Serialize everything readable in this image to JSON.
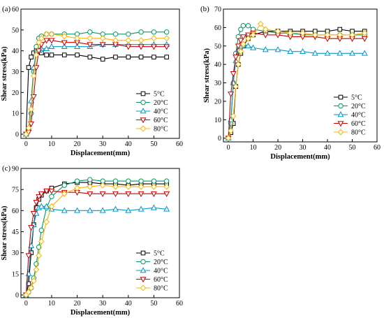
{
  "chart_data": [
    {
      "type": "line",
      "panel_label": "(a)",
      "xlabel": "Displacement(mm)",
      "ylabel": "Shear stress(kPa)",
      "xlim": [
        -2,
        60
      ],
      "ylim": [
        -2,
        60
      ],
      "xticks": [
        0,
        10,
        20,
        30,
        40,
        50,
        60
      ],
      "yticks": [
        0,
        10,
        20,
        30,
        40,
        50,
        60
      ],
      "legend_position": "lower-right",
      "series": [
        {
          "name": "5°C",
          "color": "#000000",
          "marker": "square",
          "x": [
            0,
            1,
            2,
            3,
            4,
            5,
            6,
            8,
            10,
            15,
            20,
            25,
            30,
            35,
            40,
            45,
            50,
            55
          ],
          "y": [
            0,
            32,
            37,
            39,
            40,
            40,
            39,
            38,
            38,
            38,
            38,
            37,
            36,
            37,
            37,
            37,
            37,
            37
          ]
        },
        {
          "name": "20°C",
          "color": "#009966",
          "marker": "circle",
          "x": [
            0,
            1,
            2,
            3,
            4,
            5,
            6,
            8,
            10,
            15,
            20,
            25,
            30,
            35,
            40,
            45,
            50,
            55
          ],
          "y": [
            0,
            2,
            10,
            30,
            42,
            46,
            47,
            48,
            48,
            48,
            48,
            49,
            48,
            48,
            48,
            49,
            49,
            49
          ]
        },
        {
          "name": "40°C",
          "color": "#0099cc",
          "marker": "triangle-up",
          "x": [
            0,
            1,
            2,
            3,
            4,
            5,
            6,
            8,
            10,
            15,
            20,
            25,
            30,
            35,
            40,
            45,
            50,
            55
          ],
          "y": [
            0,
            3,
            16,
            32,
            39,
            40,
            41,
            41,
            42,
            42,
            42,
            42,
            43,
            43,
            43,
            43,
            43,
            43
          ]
        },
        {
          "name": "60°C",
          "color": "#cc0000",
          "marker": "triangle-down",
          "x": [
            0,
            1,
            2,
            3,
            4,
            5,
            6,
            8,
            10,
            15,
            20,
            25,
            30,
            35,
            40,
            45,
            50,
            55
          ],
          "y": [
            0,
            1,
            5,
            18,
            32,
            40,
            43,
            45,
            45,
            44,
            44,
            43,
            43,
            43,
            42,
            42,
            42,
            42
          ]
        },
        {
          "name": "80°C",
          "color": "#ffb300",
          "marker": "diamond",
          "x": [
            0,
            1,
            2,
            3,
            4,
            5,
            6,
            8,
            10,
            15,
            20,
            25,
            30,
            35,
            40,
            45,
            50,
            55
          ],
          "y": [
            0,
            3,
            12,
            28,
            38,
            44,
            46,
            48,
            48,
            47,
            46,
            46,
            46,
            45,
            45,
            45,
            46,
            46
          ]
        }
      ]
    },
    {
      "type": "line",
      "panel_label": "(b)",
      "xlabel": "Displacement(mm)",
      "ylabel": "Shear stress(kPa)",
      "xlim": [
        -2,
        60
      ],
      "ylim": [
        -2,
        70
      ],
      "xticks": [
        0,
        10,
        20,
        30,
        40,
        50,
        60
      ],
      "yticks": [
        0,
        10,
        20,
        30,
        40,
        50,
        60,
        70
      ],
      "legend_position": "lower-right",
      "series": [
        {
          "name": "5°C",
          "color": "#000000",
          "marker": "square",
          "x": [
            0,
            1,
            2,
            3,
            4,
            5,
            6,
            8,
            10,
            15,
            20,
            25,
            30,
            35,
            40,
            45,
            50,
            55
          ],
          "y": [
            0,
            3,
            8,
            28,
            40,
            46,
            50,
            54,
            56,
            58,
            58,
            58,
            58,
            58,
            58,
            59,
            58,
            58
          ]
        },
        {
          "name": "20°C",
          "color": "#009966",
          "marker": "circle",
          "x": [
            0,
            1,
            2,
            3,
            4,
            5,
            6,
            8,
            10,
            15,
            20,
            25,
            30,
            35,
            40,
            45,
            50,
            55
          ],
          "y": [
            0,
            8,
            30,
            46,
            55,
            59,
            61,
            61,
            59,
            58,
            57,
            57,
            56,
            56,
            56,
            56,
            56,
            56
          ]
        },
        {
          "name": "40°C",
          "color": "#0099cc",
          "marker": "triangle-up",
          "x": [
            0,
            1,
            2,
            3,
            4,
            5,
            6,
            8,
            10,
            15,
            20,
            25,
            30,
            35,
            40,
            45,
            50,
            55
          ],
          "y": [
            0,
            10,
            30,
            42,
            48,
            50,
            51,
            50,
            49,
            48,
            48,
            47,
            47,
            46,
            46,
            46,
            46,
            46
          ]
        },
        {
          "name": "60°C",
          "color": "#cc0000",
          "marker": "triangle-down",
          "x": [
            0,
            1,
            2,
            3,
            4,
            5,
            6,
            8,
            10,
            15,
            20,
            25,
            30,
            35,
            40,
            45,
            50,
            55
          ],
          "y": [
            0,
            24,
            35,
            44,
            50,
            53,
            55,
            56,
            57,
            56,
            56,
            55,
            55,
            55,
            54,
            54,
            54,
            54
          ]
        },
        {
          "name": "80°C",
          "color": "#ffb300",
          "marker": "diamond",
          "x": [
            0,
            1,
            2,
            3,
            4,
            5,
            6,
            8,
            10,
            13,
            15,
            20,
            25,
            30,
            35,
            40,
            45,
            50,
            55
          ],
          "y": [
            0,
            4,
            12,
            28,
            40,
            47,
            51,
            54,
            56,
            62,
            59,
            58,
            57,
            57,
            56,
            56,
            56,
            56,
            57
          ]
        }
      ]
    },
    {
      "type": "line",
      "panel_label": "(c)",
      "xlabel": "Displacement(mm)",
      "ylabel": "Shear stress(kPa)",
      "xlim": [
        -2,
        60
      ],
      "ylim": [
        -2,
        90
      ],
      "xticks": [
        0,
        10,
        20,
        30,
        40,
        50,
        60
      ],
      "yticks": [
        0,
        15,
        30,
        45,
        60,
        75,
        90
      ],
      "legend_position": "lower-right",
      "series": [
        {
          "name": "5°C",
          "color": "#000000",
          "marker": "square",
          "x": [
            0,
            1,
            2,
            3,
            4,
            5,
            6,
            8,
            10,
            15,
            20,
            25,
            30,
            35,
            40,
            45,
            50,
            55
          ],
          "y": [
            0,
            8,
            30,
            50,
            62,
            68,
            71,
            74,
            76,
            79,
            80,
            80,
            79,
            79,
            78,
            79,
            79,
            79
          ]
        },
        {
          "name": "20°C",
          "color": "#009966",
          "marker": "circle",
          "x": [
            0,
            1,
            2,
            3,
            4,
            5,
            6,
            8,
            10,
            15,
            20,
            25,
            30,
            35,
            40,
            45,
            50,
            55
          ],
          "y": [
            0,
            2,
            5,
            12,
            22,
            34,
            46,
            62,
            70,
            78,
            81,
            82,
            81,
            81,
            81,
            81,
            81,
            81
          ]
        },
        {
          "name": "40°C",
          "color": "#0099cc",
          "marker": "triangle-up",
          "x": [
            0,
            1,
            2,
            3,
            4,
            5,
            6,
            8,
            10,
            15,
            20,
            25,
            30,
            35,
            40,
            45,
            50,
            55
          ],
          "y": [
            0,
            15,
            35,
            50,
            58,
            62,
            63,
            63,
            61,
            60,
            60,
            60,
            60,
            61,
            60,
            61,
            62,
            61
          ]
        },
        {
          "name": "60°C",
          "color": "#cc0000",
          "marker": "triangle-down",
          "x": [
            0,
            1,
            2,
            3,
            4,
            5,
            6,
            8,
            10,
            15,
            20,
            25,
            30,
            35,
            40,
            45,
            50,
            55
          ],
          "y": [
            0,
            28,
            48,
            58,
            66,
            70,
            72,
            74,
            74,
            73,
            73,
            72,
            72,
            72,
            72,
            72,
            72,
            72
          ]
        },
        {
          "name": "80°C",
          "color": "#ffb300",
          "marker": "diamond",
          "x": [
            0,
            1,
            2,
            3,
            4,
            5,
            6,
            8,
            10,
            15,
            20,
            25,
            30,
            35,
            40,
            45,
            50,
            55
          ],
          "y": [
            0,
            2,
            5,
            10,
            18,
            28,
            38,
            52,
            63,
            72,
            76,
            77,
            78,
            77,
            77,
            77,
            77,
            77
          ]
        }
      ]
    }
  ]
}
